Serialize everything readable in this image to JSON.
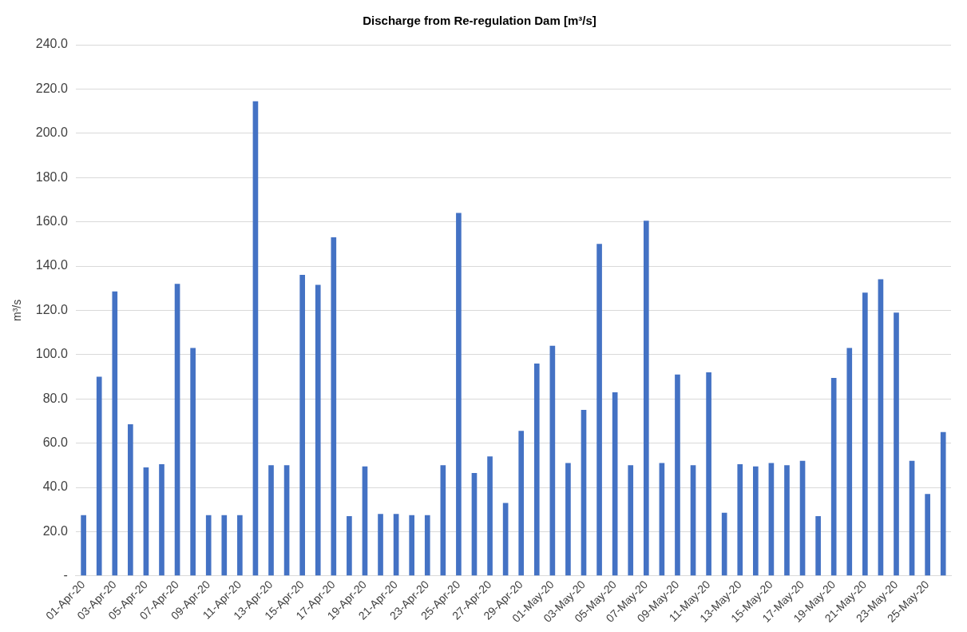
{
  "chart_data": {
    "type": "bar",
    "title": "Discharge from Re-regulation Dam [m³/s]",
    "ylabel": "m³/s",
    "categories": [
      "01-Apr-20",
      null,
      "03-Apr-20",
      null,
      "05-Apr-20",
      null,
      "07-Apr-20",
      null,
      "09-Apr-20",
      null,
      "11-Apr-20",
      null,
      "13-Apr-20",
      null,
      "15-Apr-20",
      null,
      "17-Apr-20",
      null,
      "19-Apr-20",
      null,
      "21-Apr-20",
      null,
      "23-Apr-20",
      null,
      "25-Apr-20",
      null,
      "27-Apr-20",
      null,
      "29-Apr-20",
      null,
      "01-May-20",
      null,
      "03-May-20",
      null,
      "05-May-20",
      null,
      "07-May-20",
      null,
      "09-May-20",
      null,
      "11-May-20",
      null,
      "13-May-20",
      null,
      "15-May-20",
      null,
      "17-May-20",
      null,
      "19-May-20",
      null,
      "21-May-20",
      null,
      "23-May-20",
      null,
      "25-May-20",
      null
    ],
    "values": [
      27.5,
      90,
      128.5,
      68.5,
      49,
      50.5,
      132,
      103,
      27.5,
      27.5,
      27.5,
      214.5,
      50,
      50,
      136,
      131.5,
      153,
      27,
      49.5,
      28,
      28,
      27.5,
      27.5,
      50,
      164,
      46.5,
      54,
      33,
      65.5,
      96,
      104,
      51,
      75,
      150,
      83,
      50,
      160.5,
      51,
      91,
      50,
      92,
      28.5,
      50.5,
      49.5,
      51,
      50,
      52,
      27,
      89.5,
      103,
      128,
      134,
      119,
      52,
      37,
      65
    ],
    "color": "#4472c4",
    "ylim": [
      0,
      240
    ],
    "yticks": [
      {
        "value": 0,
        "label": "-"
      },
      {
        "value": 20,
        "label": "20.0"
      },
      {
        "value": 40,
        "label": "40.0"
      },
      {
        "value": 60,
        "label": "60.0"
      },
      {
        "value": 80,
        "label": "80.0"
      },
      {
        "value": 100,
        "label": "100.0"
      },
      {
        "value": 120,
        "label": "120.0"
      },
      {
        "value": 140,
        "label": "140.0"
      },
      {
        "value": 160,
        "label": "160.0"
      },
      {
        "value": 180,
        "label": "180.0"
      },
      {
        "value": 200,
        "label": "200.0"
      },
      {
        "value": 220,
        "label": "220.0"
      },
      {
        "value": 240,
        "label": "240.0"
      }
    ],
    "grid": "y",
    "legend": false
  }
}
